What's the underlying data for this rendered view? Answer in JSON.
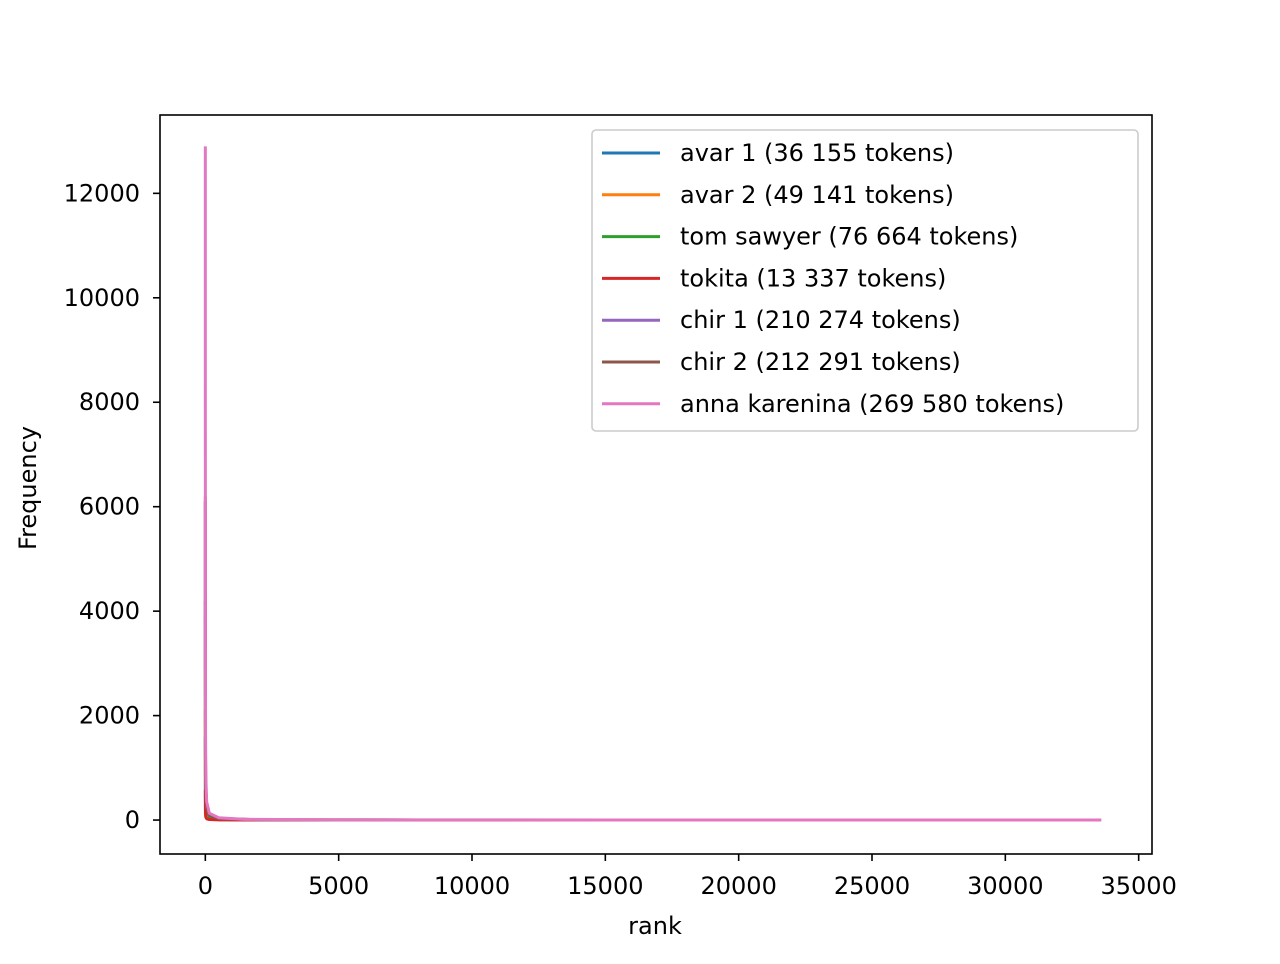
{
  "chart_data": {
    "type": "line",
    "title": "",
    "xlabel": "rank",
    "ylabel": "Frequency",
    "xlim": [
      -1700,
      35500
    ],
    "ylim": [
      -650,
      13500
    ],
    "xticks": [
      0,
      5000,
      10000,
      15000,
      20000,
      25000,
      30000,
      35000
    ],
    "yticks": [
      0,
      2000,
      4000,
      6000,
      8000,
      10000,
      12000
    ],
    "grid": false,
    "legend_position": "top-right",
    "series": [
      {
        "name": "avar 1 (36 155 tokens)",
        "color": "#1f77b4",
        "x": [
          0,
          1,
          5,
          15,
          50,
          150,
          500,
          2000,
          6000,
          9800
        ],
        "y": [
          1600,
          700,
          350,
          180,
          80,
          30,
          8,
          2,
          1,
          1
        ]
      },
      {
        "name": "avar 2 (49 141 tokens)",
        "color": "#ff7f0e",
        "x": [
          0,
          1,
          5,
          15,
          50,
          150,
          500,
          2000,
          7000,
          12500
        ],
        "y": [
          2100,
          900,
          430,
          220,
          95,
          38,
          10,
          3,
          1,
          1
        ]
      },
      {
        "name": "tom sawyer (76 664 tokens)",
        "color": "#2ca02c",
        "x": [
          0,
          1,
          5,
          15,
          50,
          150,
          500,
          2000,
          5000,
          7600
        ],
        "y": [
          4200,
          2000,
          900,
          430,
          170,
          60,
          18,
          4,
          1,
          1
        ]
      },
      {
        "name": "tokita (13 337 tokens)",
        "color": "#d62728",
        "x": [
          0,
          1,
          5,
          15,
          50,
          150,
          500,
          1500,
          3000,
          4500
        ],
        "y": [
          580,
          260,
          120,
          60,
          25,
          10,
          3,
          1,
          1,
          1
        ]
      },
      {
        "name": "chir 1 (210 274 tokens)",
        "color": "#9467bd",
        "x": [
          0,
          1,
          5,
          15,
          50,
          150,
          500,
          2000,
          8000,
          20000,
          26100
        ],
        "y": [
          6200,
          3000,
          1300,
          650,
          250,
          90,
          30,
          7,
          2,
          1,
          1
        ]
      },
      {
        "name": "chir 2 (212 291 tokens)",
        "color": "#8c564b",
        "x": [
          0,
          1,
          5,
          15,
          50,
          150,
          500,
          2000,
          8000,
          20000,
          26300
        ],
        "y": [
          6100,
          2900,
          1250,
          640,
          245,
          88,
          29,
          7,
          2,
          1,
          1
        ]
      },
      {
        "name": "anna karenina (269 580 tokens)",
        "color": "#e377c2",
        "x": [
          0,
          1,
          3,
          8,
          20,
          50,
          150,
          500,
          1500,
          5000,
          15000,
          25000,
          33600
        ],
        "y": [
          12900,
          6500,
          3200,
          1600,
          800,
          350,
          130,
          45,
          14,
          4,
          2,
          1,
          1
        ]
      }
    ]
  }
}
